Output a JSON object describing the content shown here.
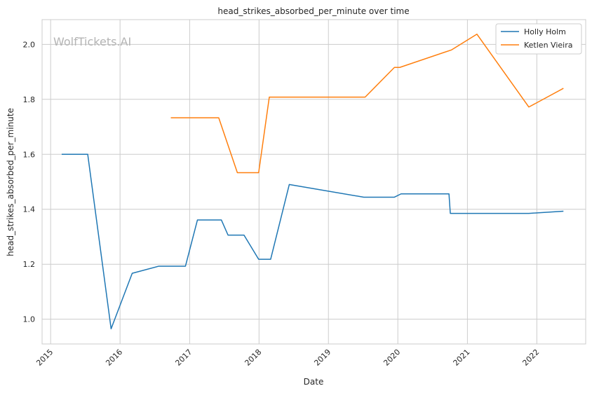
{
  "chart_data": {
    "type": "line",
    "title": "head_strikes_absorbed_per_minute over time",
    "xlabel": "Date",
    "ylabel": "head_strikes_absorbed_per_minute",
    "watermark": "WolfTickets.AI",
    "xlim": [
      "2014-11-17",
      "2022-09-15"
    ],
    "ylim": [
      0.91,
      2.09
    ],
    "x_ticks": [
      "2015",
      "2016",
      "2017",
      "2018",
      "2019",
      "2020",
      "2021",
      "2022"
    ],
    "y_ticks": [
      1.0,
      1.2,
      1.4,
      1.6,
      1.8,
      2.0
    ],
    "y_tick_labels": [
      "1.0",
      "1.2",
      "1.4",
      "1.6",
      "1.8",
      "2.0"
    ],
    "grid": true,
    "legend_position": "top-right",
    "series": [
      {
        "name": "Holly Holm",
        "color": "#1f77b4",
        "points": [
          [
            "2015-02-28",
            1.6
          ],
          [
            "2015-07-15",
            1.6
          ],
          [
            "2015-11-15",
            0.965
          ],
          [
            "2016-03-05",
            1.167
          ],
          [
            "2016-07-23",
            1.193
          ],
          [
            "2016-12-10",
            1.193
          ],
          [
            "2017-02-11",
            1.361
          ],
          [
            "2017-06-17",
            1.361
          ],
          [
            "2017-07-22",
            1.306
          ],
          [
            "2017-10-14",
            1.306
          ],
          [
            "2017-12-30",
            1.218
          ],
          [
            "2018-03-03",
            1.218
          ],
          [
            "2018-06-09",
            1.49
          ],
          [
            "2019-07-06",
            1.444
          ],
          [
            "2019-12-14",
            1.444
          ],
          [
            "2020-01-18",
            1.456
          ],
          [
            "2020-09-26",
            1.456
          ],
          [
            "2020-10-03",
            1.385
          ],
          [
            "2021-11-20",
            1.385
          ],
          [
            "2022-05-21",
            1.393
          ]
        ]
      },
      {
        "name": "Ketlen Vieira",
        "color": "#ff7f0e",
        "points": [
          [
            "2016-09-24",
            1.733
          ],
          [
            "2017-06-03",
            1.733
          ],
          [
            "2017-09-09",
            1.533
          ],
          [
            "2017-12-30",
            1.533
          ],
          [
            "2018-02-24",
            1.808
          ],
          [
            "2019-07-13",
            1.808
          ],
          [
            "2019-12-14",
            1.916
          ],
          [
            "2020-01-11",
            1.916
          ],
          [
            "2020-10-10",
            1.98
          ],
          [
            "2021-02-20",
            2.037
          ],
          [
            "2021-11-20",
            1.772
          ],
          [
            "2022-05-21",
            1.84
          ]
        ]
      }
    ]
  }
}
